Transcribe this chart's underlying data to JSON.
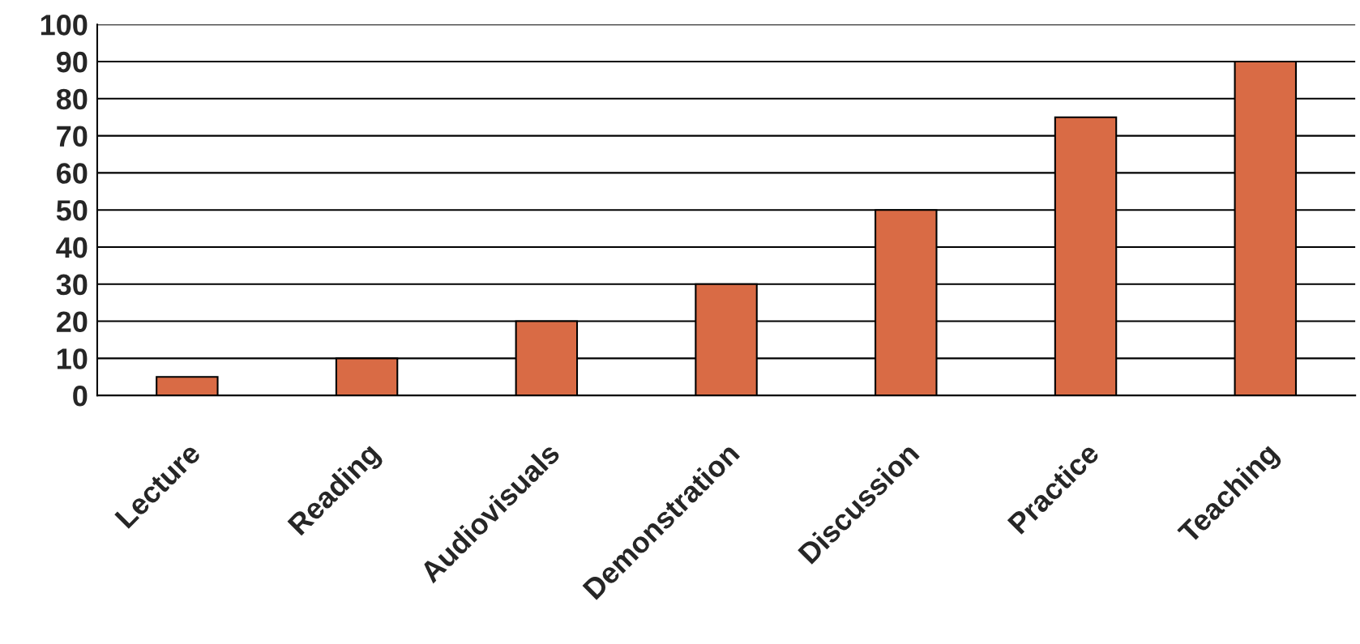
{
  "chart_data": {
    "type": "bar",
    "categories": [
      "Lecture",
      "Reading",
      "Audiovisuals",
      "Demonstration",
      "Discussion",
      "Practice",
      "Teaching"
    ],
    "values": [
      5,
      10,
      20,
      30,
      50,
      75,
      90
    ],
    "color": "#d96b45",
    "ylim": [
      0,
      100
    ],
    "yticks": [
      0,
      10,
      20,
      30,
      40,
      50,
      60,
      70,
      80,
      90,
      100
    ],
    "grid": "y"
  }
}
